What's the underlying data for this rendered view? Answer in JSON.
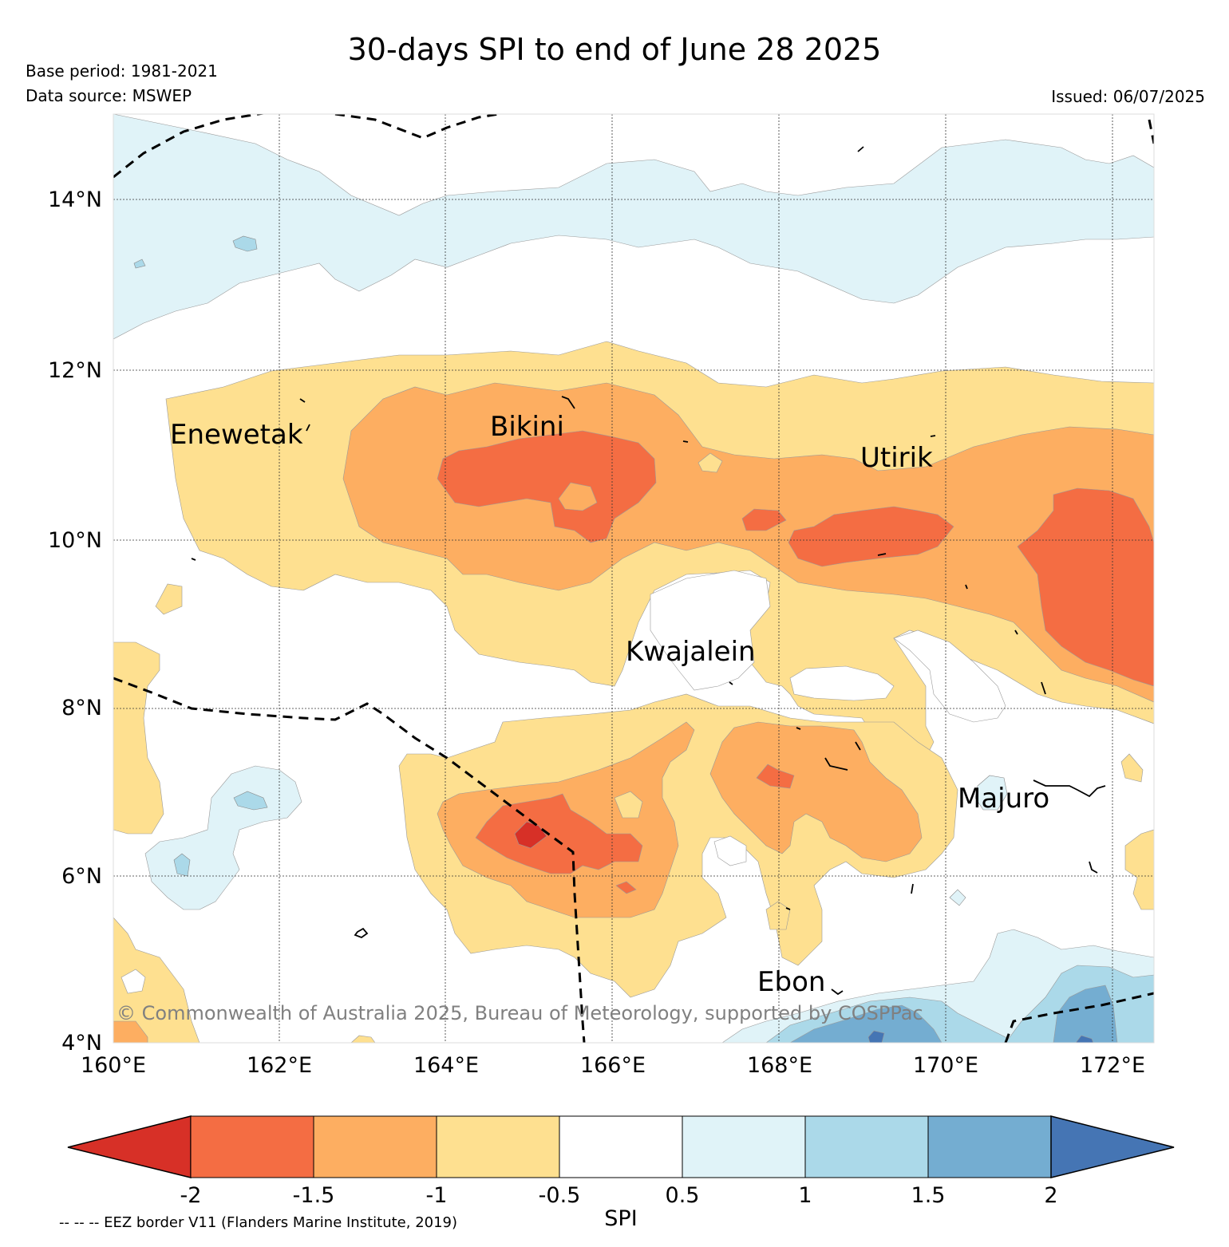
{
  "title": "30-days SPI to end of June 28 2025",
  "base_period": "Base period: 1981-2021",
  "data_source": "Data source: MSWEP",
  "issued": "Issued: 06/07/2025",
  "copyright": "© Commonwealth of Australia 2025, Bureau of Meteorology, supported by COSPPac",
  "eez_note": "-- -- -- EEZ border V11 (Flanders Marine Institute, 2019)",
  "map": {
    "lon_labels": [
      "160°E",
      "162°E",
      "164°E",
      "166°E",
      "168°E",
      "170°E",
      "172°E"
    ],
    "lat_labels": [
      "14°N",
      "12°N",
      "10°N",
      "8°N",
      "6°N",
      "4°N"
    ],
    "places": [
      "Enewetak",
      "Bikini",
      "Utirik",
      "Kwajalein",
      "Majuro",
      "Ebon"
    ]
  },
  "colorbar": {
    "label": "SPI",
    "ticks": [
      "-2",
      "-1.5",
      "-1",
      "-0.5",
      "0.5",
      "1",
      "1.5",
      "2"
    ],
    "colors": [
      "#d73027",
      "#f46d43",
      "#fdae61",
      "#fee090",
      "#ffffff",
      "#e0f3f8",
      "#abd9e9",
      "#74add1",
      "#4575b4"
    ]
  }
}
